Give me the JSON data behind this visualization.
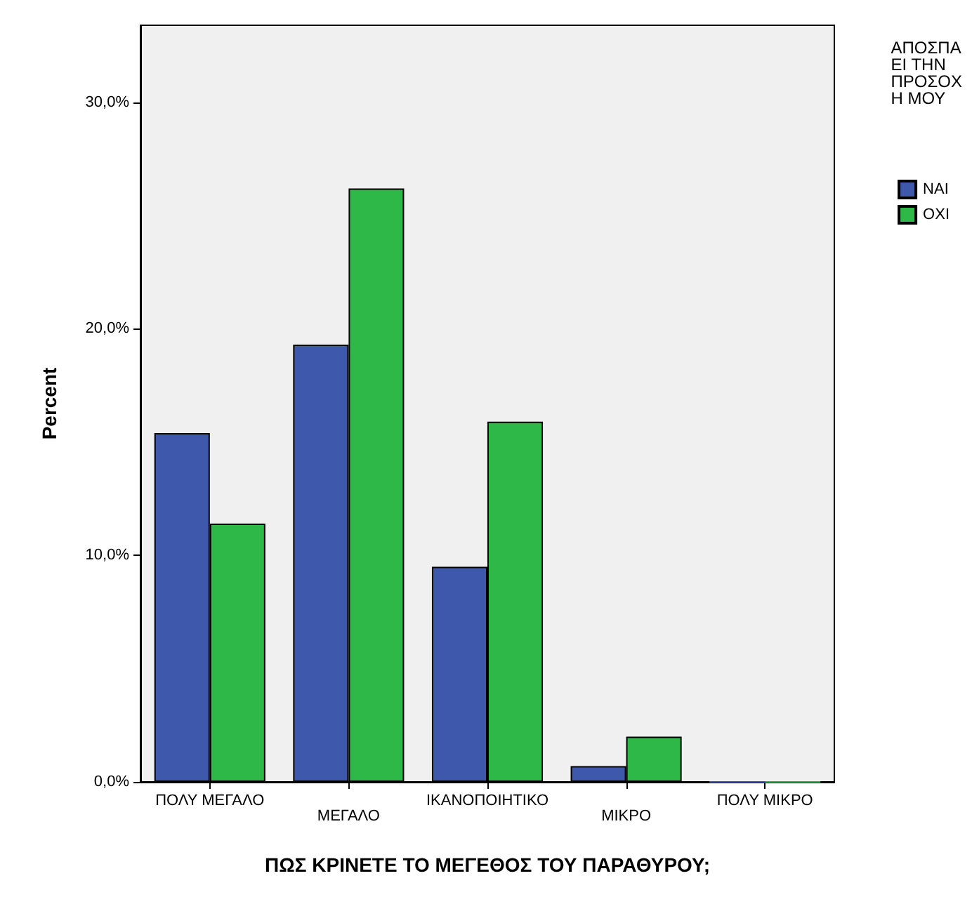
{
  "chart_data": {
    "type": "bar",
    "xlabel": "ΠΩΣ ΚΡΙΝΕΤΕ ΤΟ ΜΕΓΕΘΟΣ ΤΟΥ ΠΑΡΑΘΥΡΟΥ;",
    "ylabel": "Percent",
    "legend_title": "ΑΠΟΣΠΑΕΙ ΤΗΝ ΠΡΟΣΟΧΗ ΜΟΥ",
    "categories": [
      "ΠΟΛΥ ΜΕΓΑΛΟ",
      "ΜΕΓΑΛΟ",
      "ΙΚΑΝΟΠΟΙΗΤΙΚΟ",
      "ΜΙΚΡΟ",
      "ΠΟΛΥ ΜΙΚΡΟ"
    ],
    "series": [
      {
        "name": "ΝΑΙ",
        "color": "#3e58ac",
        "values": [
          15.4,
          19.3,
          9.5,
          0.7,
          0
        ]
      },
      {
        "name": "ΟΧΙ",
        "color": "#2eb848",
        "values": [
          11.4,
          26.2,
          15.9,
          2.0,
          0
        ]
      }
    ],
    "ylim": [
      0,
      33.4
    ],
    "yticks": [
      {
        "value": 0,
        "label": "0,0%"
      },
      {
        "value": 10,
        "label": "10,0%"
      },
      {
        "value": 20,
        "label": "20,0%"
      },
      {
        "value": 30,
        "label": "30,0%"
      }
    ],
    "grid": false,
    "legend": "right"
  }
}
